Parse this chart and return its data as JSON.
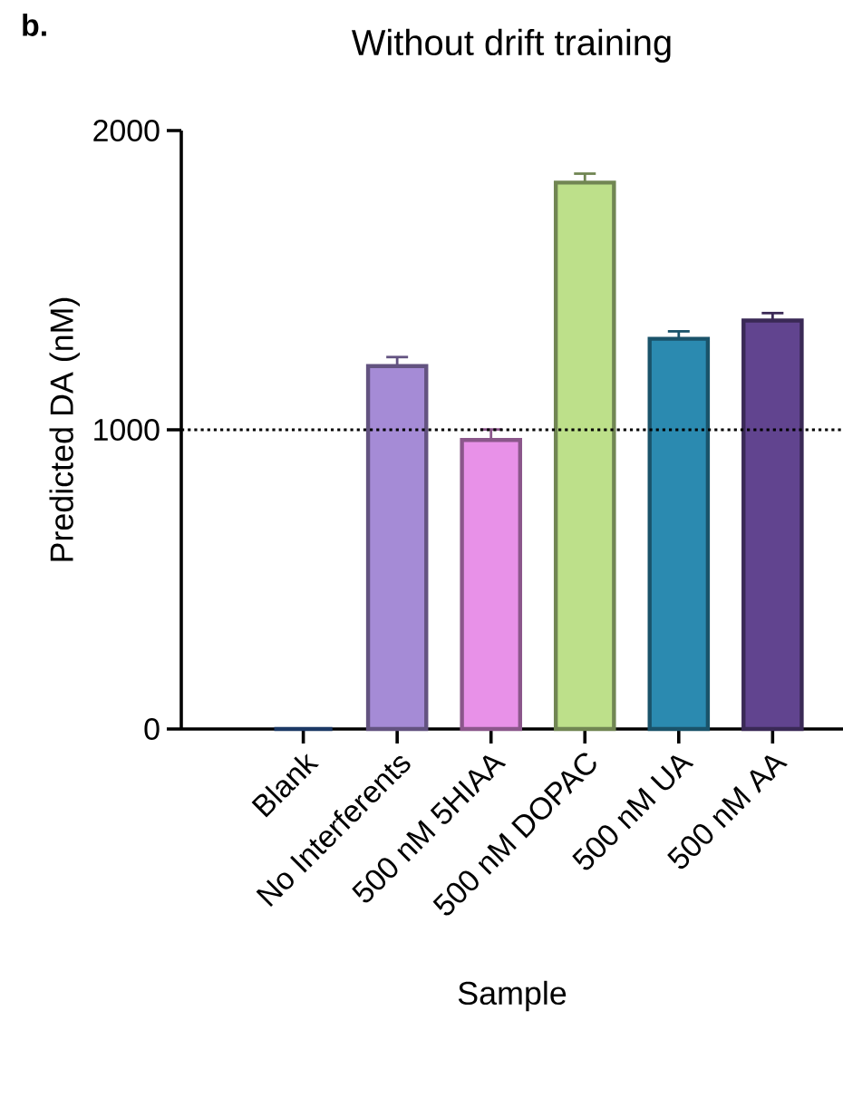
{
  "chart_data": {
    "type": "bar",
    "title": "Without drift training",
    "xlabel": "Sample",
    "ylabel": "Predicted DA (nM)",
    "categories": [
      "Blank",
      "No Interferents",
      "500 nM 5HIAA",
      "500 nM DOPAC",
      "500 nM UA",
      "500 nM AA"
    ],
    "values": [
      0,
      1213,
      966,
      1826,
      1304,
      1365
    ],
    "errors": [
      null,
      30,
      35,
      30,
      25,
      25
    ],
    "colors": [
      "#2f5fa8",
      "#a58bd6",
      "#e891e8",
      "#bde08a",
      "#2b8ab0",
      "#61448f"
    ],
    "ylim": [
      0,
      2000
    ],
    "yticks": [
      0,
      1000,
      2000
    ],
    "ref_lines": [
      {
        "axis": "y",
        "value": 1000,
        "line_style": "dotted"
      }
    ],
    "annotations": [
      "b."
    ],
    "grid": false
  }
}
